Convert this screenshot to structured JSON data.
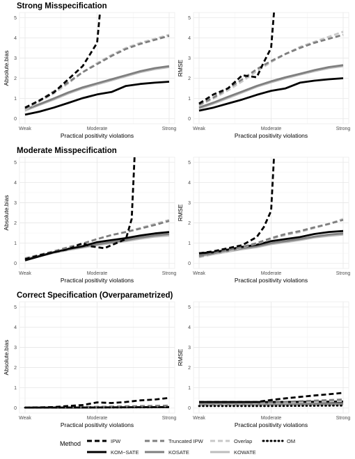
{
  "chart_data": [
    {
      "type": "line",
      "title": "Strong Misspecification",
      "xlabel": "Practical positivity violations",
      "ylabel": "Absolute.bias",
      "x_ticks": [
        "Weak",
        "Moderate",
        "Strong"
      ],
      "xlim": [
        0,
        1
      ],
      "y_ticks": [
        "0",
        "1",
        "2",
        "3",
        "4",
        "5"
      ],
      "ylim": [
        -0.25,
        5.25
      ],
      "grid": true,
      "series": [
        {
          "name": "KOM−SATE",
          "x": [
            0,
            0.1,
            0.2,
            0.3,
            0.4,
            0.5,
            0.6,
            0.7,
            0.8,
            0.9,
            1.0
          ],
          "y": [
            0.2,
            0.35,
            0.55,
            0.78,
            1.02,
            1.2,
            1.32,
            1.62,
            1.72,
            1.78,
            1.83
          ]
        },
        {
          "name": "KOSATE",
          "x": [
            0,
            0.1,
            0.2,
            0.3,
            0.4,
            0.5,
            0.6,
            0.7,
            0.8,
            0.9,
            1.0
          ],
          "y": [
            0.45,
            0.72,
            1.0,
            1.3,
            1.55,
            1.75,
            1.95,
            2.15,
            2.35,
            2.5,
            2.6
          ]
        },
        {
          "name": "KOWATE",
          "x": [
            0,
            0.1,
            0.2,
            0.3,
            0.4,
            0.5,
            0.6,
            0.7,
            0.8,
            0.9,
            1.0
          ],
          "y": [
            0.4,
            0.68,
            0.95,
            1.25,
            1.5,
            1.7,
            1.9,
            2.1,
            2.3,
            2.45,
            2.55
          ]
        },
        {
          "name": "Overlap",
          "x": [
            0,
            0.1,
            0.2,
            0.3,
            0.4,
            0.5,
            0.6,
            0.7,
            0.8,
            0.9,
            1.0
          ],
          "y": [
            0.45,
            0.85,
            1.25,
            1.75,
            2.3,
            2.75,
            3.15,
            3.5,
            3.75,
            3.95,
            4.15
          ]
        },
        {
          "name": "Truncated IPW",
          "x": [
            0,
            0.1,
            0.2,
            0.3,
            0.4,
            0.5,
            0.6,
            0.7,
            0.8,
            0.9,
            1.0
          ],
          "y": [
            0.5,
            0.9,
            1.35,
            1.8,
            2.3,
            2.7,
            3.1,
            3.45,
            3.7,
            3.9,
            4.1
          ]
        },
        {
          "name": "IPW",
          "x": [
            0,
            0.1,
            0.2,
            0.3,
            0.4,
            0.5,
            0.52
          ],
          "y": [
            0.55,
            0.9,
            1.3,
            1.95,
            2.6,
            3.75,
            5.25
          ]
        },
        {
          "name": "OM",
          "x": [],
          "y": []
        }
      ]
    },
    {
      "type": "line",
      "title": "",
      "xlabel": "Practical positivity violations",
      "ylabel": "RMSE",
      "x_ticks": [
        "Weak",
        "Moderate",
        "Strong"
      ],
      "xlim": [
        0,
        1
      ],
      "y_ticks": [
        "0",
        "1",
        "2",
        "3",
        "4",
        "5"
      ],
      "ylim": [
        -0.25,
        5.25
      ],
      "grid": true,
      "series": [
        {
          "name": "KOM−SATE",
          "x": [
            0,
            0.1,
            0.2,
            0.3,
            0.4,
            0.5,
            0.6,
            0.7,
            0.8,
            0.9,
            1.0
          ],
          "y": [
            0.4,
            0.55,
            0.75,
            0.95,
            1.18,
            1.38,
            1.5,
            1.78,
            1.88,
            1.95,
            2.0
          ]
        },
        {
          "name": "KOSATE",
          "x": [
            0,
            0.1,
            0.2,
            0.3,
            0.4,
            0.5,
            0.6,
            0.7,
            0.8,
            0.9,
            1.0
          ],
          "y": [
            0.55,
            0.8,
            1.08,
            1.35,
            1.62,
            1.85,
            2.05,
            2.22,
            2.4,
            2.55,
            2.65
          ]
        },
        {
          "name": "KOWATE",
          "x": [
            0,
            0.1,
            0.2,
            0.3,
            0.4,
            0.5,
            0.6,
            0.7,
            0.8,
            0.9,
            1.0
          ],
          "y": [
            0.5,
            0.75,
            1.02,
            1.3,
            1.58,
            1.8,
            2.0,
            2.18,
            2.35,
            2.5,
            2.6
          ]
        },
        {
          "name": "Overlap",
          "x": [
            0,
            0.1,
            0.2,
            0.3,
            0.4,
            0.5,
            0.6,
            0.7,
            0.8,
            0.9,
            1.0
          ],
          "y": [
            0.65,
            1.0,
            1.4,
            1.85,
            2.35,
            2.8,
            3.2,
            3.55,
            3.8,
            4.05,
            4.3
          ]
        },
        {
          "name": "Truncated IPW",
          "x": [
            0,
            0.1,
            0.2,
            0.3,
            0.4,
            0.5,
            0.6,
            0.7,
            0.8,
            0.9,
            1.0
          ],
          "y": [
            0.7,
            1.05,
            1.5,
            1.95,
            2.45,
            2.85,
            3.2,
            3.5,
            3.75,
            3.95,
            4.15
          ]
        },
        {
          "name": "IPW",
          "x": [
            0,
            0.1,
            0.2,
            0.3,
            0.4,
            0.45,
            0.5,
            0.52
          ],
          "y": [
            0.75,
            1.2,
            1.5,
            2.15,
            2.05,
            2.8,
            3.5,
            5.25
          ]
        },
        {
          "name": "OM",
          "x": [],
          "y": []
        }
      ]
    },
    {
      "type": "line",
      "title": "Moderate Misspecification",
      "xlabel": "Practical positivity violations",
      "ylabel": "Absolute.bias",
      "x_ticks": [
        "Weak",
        "Moderate",
        "Strong"
      ],
      "xlim": [
        0,
        1
      ],
      "y_ticks": [
        "0",
        "1",
        "2",
        "3",
        "4",
        "5"
      ],
      "ylim": [
        -0.25,
        5.25
      ],
      "grid": true,
      "series": [
        {
          "name": "KOM−SATE",
          "x": [
            0,
            0.1,
            0.2,
            0.3,
            0.4,
            0.5,
            0.6,
            0.7,
            0.8,
            0.9,
            1.0
          ],
          "y": [
            0.15,
            0.35,
            0.55,
            0.72,
            0.85,
            1.05,
            1.15,
            1.25,
            1.38,
            1.48,
            1.55
          ]
        },
        {
          "name": "KOSATE",
          "x": [
            0,
            0.1,
            0.2,
            0.3,
            0.4,
            0.5,
            0.6,
            0.7,
            0.8,
            0.9,
            1.0
          ],
          "y": [
            0.2,
            0.38,
            0.55,
            0.7,
            0.82,
            0.95,
            1.05,
            1.15,
            1.28,
            1.38,
            1.45
          ]
        },
        {
          "name": "KOWATE",
          "x": [
            0,
            0.1,
            0.2,
            0.3,
            0.4,
            0.5,
            0.6,
            0.7,
            0.8,
            0.9,
            1.0
          ],
          "y": [
            0.18,
            0.35,
            0.52,
            0.66,
            0.78,
            0.9,
            1.0,
            1.1,
            1.22,
            1.32,
            1.38
          ]
        },
        {
          "name": "Overlap",
          "x": [
            0,
            0.1,
            0.2,
            0.3,
            0.4,
            0.5,
            0.6,
            0.7,
            0.8,
            0.9,
            1.0
          ],
          "y": [
            0.2,
            0.4,
            0.6,
            0.78,
            0.95,
            1.2,
            1.4,
            1.55,
            1.75,
            1.95,
            2.15
          ]
        },
        {
          "name": "Truncated IPW",
          "x": [
            0,
            0.1,
            0.2,
            0.3,
            0.4,
            0.5,
            0.6,
            0.7,
            0.8,
            0.9,
            1.0
          ],
          "y": [
            0.25,
            0.42,
            0.6,
            0.8,
            0.98,
            1.2,
            1.4,
            1.55,
            1.72,
            1.9,
            2.1
          ]
        },
        {
          "name": "IPW",
          "x": [
            0,
            0.1,
            0.2,
            0.3,
            0.4,
            0.45,
            0.55,
            0.7,
            0.74,
            0.76
          ],
          "y": [
            0.2,
            0.4,
            0.55,
            0.7,
            1.0,
            0.85,
            0.75,
            1.2,
            2.2,
            5.25
          ]
        },
        {
          "name": "OM",
          "x": [],
          "y": []
        }
      ]
    },
    {
      "type": "line",
      "title": "",
      "xlabel": "Practical positivity violations",
      "ylabel": "RMSE",
      "x_ticks": [
        "Weak",
        "Moderate",
        "Strong"
      ],
      "xlim": [
        0,
        1
      ],
      "y_ticks": [
        "0",
        "1",
        "2",
        "3",
        "4",
        "5"
      ],
      "ylim": [
        -0.25,
        5.25
      ],
      "grid": true,
      "series": [
        {
          "name": "KOM−SATE",
          "x": [
            0,
            0.1,
            0.2,
            0.3,
            0.4,
            0.5,
            0.6,
            0.7,
            0.8,
            0.9,
            1.0
          ],
          "y": [
            0.5,
            0.55,
            0.68,
            0.82,
            0.92,
            1.1,
            1.2,
            1.3,
            1.45,
            1.55,
            1.6
          ]
        },
        {
          "name": "KOSATE",
          "x": [
            0,
            0.1,
            0.2,
            0.3,
            0.4,
            0.5,
            0.6,
            0.7,
            0.8,
            0.9,
            1.0
          ],
          "y": [
            0.4,
            0.5,
            0.62,
            0.75,
            0.85,
            1.0,
            1.1,
            1.2,
            1.32,
            1.42,
            1.48
          ]
        },
        {
          "name": "KOWATE",
          "x": [
            0,
            0.1,
            0.2,
            0.3,
            0.4,
            0.5,
            0.6,
            0.7,
            0.8,
            0.9,
            1.0
          ],
          "y": [
            0.35,
            0.45,
            0.58,
            0.7,
            0.8,
            0.95,
            1.05,
            1.15,
            1.28,
            1.36,
            1.42
          ]
        },
        {
          "name": "Overlap",
          "x": [
            0,
            0.1,
            0.2,
            0.3,
            0.4,
            0.5,
            0.6,
            0.7,
            0.8,
            0.9,
            1.0
          ],
          "y": [
            0.3,
            0.45,
            0.6,
            0.8,
            0.98,
            1.2,
            1.4,
            1.55,
            1.75,
            1.95,
            2.2
          ]
        },
        {
          "name": "Truncated IPW",
          "x": [
            0,
            0.1,
            0.2,
            0.3,
            0.4,
            0.5,
            0.6,
            0.7,
            0.8,
            0.9,
            1.0
          ],
          "y": [
            0.35,
            0.5,
            0.65,
            0.82,
            1.0,
            1.25,
            1.45,
            1.6,
            1.78,
            1.95,
            2.15
          ]
        },
        {
          "name": "IPW",
          "x": [
            0,
            0.1,
            0.2,
            0.3,
            0.4,
            0.45,
            0.5,
            0.52
          ],
          "y": [
            0.5,
            0.6,
            0.75,
            0.9,
            1.3,
            1.8,
            2.6,
            5.25
          ]
        },
        {
          "name": "OM",
          "x": [],
          "y": []
        }
      ]
    },
    {
      "type": "line",
      "title": "Correct Specification (Overparametrized)",
      "xlabel": "Practical positivity violations",
      "ylabel": "Absolute.bias",
      "x_ticks": [
        "Weak",
        "Moderate",
        "Strong"
      ],
      "xlim": [
        0,
        1
      ],
      "y_ticks": [
        "0",
        "1",
        "2",
        "3",
        "4",
        "5"
      ],
      "ylim": [
        -0.25,
        5.25
      ],
      "grid": true,
      "series": [
        {
          "name": "KOM−SATE",
          "x": [
            0,
            0.5,
            1.0
          ],
          "y": [
            0.02,
            0.03,
            0.05
          ]
        },
        {
          "name": "KOSATE",
          "x": [
            0,
            0.5,
            1.0
          ],
          "y": [
            0.02,
            0.03,
            0.05
          ]
        },
        {
          "name": "KOWATE",
          "x": [
            0,
            0.5,
            1.0
          ],
          "y": [
            0.02,
            0.03,
            0.04
          ]
        },
        {
          "name": "Overlap",
          "x": [
            0,
            0.5,
            1.0
          ],
          "y": [
            0.03,
            0.05,
            0.1
          ]
        },
        {
          "name": "Truncated IPW",
          "x": [
            0,
            0.5,
            1.0
          ],
          "y": [
            0.03,
            0.06,
            0.12
          ]
        },
        {
          "name": "IPW",
          "x": [
            0,
            0.1,
            0.2,
            0.3,
            0.4,
            0.5,
            0.6,
            0.7,
            0.8,
            0.9,
            1.0
          ],
          "y": [
            0.02,
            0.03,
            0.05,
            0.1,
            0.15,
            0.28,
            0.25,
            0.3,
            0.38,
            0.42,
            0.5
          ]
        },
        {
          "name": "OM",
          "x": [
            0,
            0.5,
            1.0
          ],
          "y": [
            0.02,
            0.03,
            0.04
          ]
        }
      ]
    },
    {
      "type": "line",
      "title": "",
      "xlabel": "Practical positivity violations",
      "ylabel": "RMSE",
      "x_ticks": [
        "Weak",
        "Moderate",
        "Strong"
      ],
      "xlim": [
        0,
        1
      ],
      "y_ticks": [
        "0",
        "1",
        "2",
        "3",
        "4",
        "5"
      ],
      "ylim": [
        -0.25,
        5.25
      ],
      "grid": true,
      "series": [
        {
          "name": "KOM−SATE",
          "x": [
            0,
            0.5,
            1.0
          ],
          "y": [
            0.3,
            0.3,
            0.32
          ]
        },
        {
          "name": "KOSATE",
          "x": [
            0,
            0.5,
            1.0
          ],
          "y": [
            0.2,
            0.2,
            0.22
          ]
        },
        {
          "name": "KOWATE",
          "x": [
            0,
            0.5,
            1.0
          ],
          "y": [
            0.15,
            0.16,
            0.18
          ]
        },
        {
          "name": "Overlap",
          "x": [
            0,
            0.5,
            1.0
          ],
          "y": [
            0.2,
            0.25,
            0.35
          ]
        },
        {
          "name": "Truncated IPW",
          "x": [
            0,
            0.5,
            1.0
          ],
          "y": [
            0.22,
            0.28,
            0.42
          ]
        },
        {
          "name": "IPW",
          "x": [
            0,
            0.1,
            0.2,
            0.3,
            0.4,
            0.5,
            0.6,
            0.7,
            0.8,
            0.9,
            1.0
          ],
          "y": [
            0.3,
            0.3,
            0.3,
            0.3,
            0.3,
            0.4,
            0.48,
            0.55,
            0.62,
            0.68,
            0.75
          ]
        },
        {
          "name": "OM",
          "x": [
            0,
            0.5,
            1.0
          ],
          "y": [
            0.1,
            0.1,
            0.12
          ]
        }
      ]
    }
  ],
  "legend": {
    "title": "Method",
    "entries": [
      "IPW",
      "Truncated IPW",
      "Overlap",
      "OM",
      "KOM−SATE",
      "KOSATE",
      "KOWATE"
    ],
    "position": "bottom"
  },
  "styles": {
    "IPW": {
      "color": "#000000",
      "dash": "dashed"
    },
    "Truncated IPW": {
      "color": "#7f7f7f",
      "dash": "dashed"
    },
    "Overlap": {
      "color": "#c8c8c8",
      "dash": "dashed"
    },
    "OM": {
      "color": "#000000",
      "dash": "dotted"
    },
    "KOM−SATE": {
      "color": "#000000",
      "dash": "solid"
    },
    "KOSATE": {
      "color": "#7f7f7f",
      "dash": "solid"
    },
    "KOWATE": {
      "color": "#bdbdbd",
      "dash": "solid"
    }
  }
}
